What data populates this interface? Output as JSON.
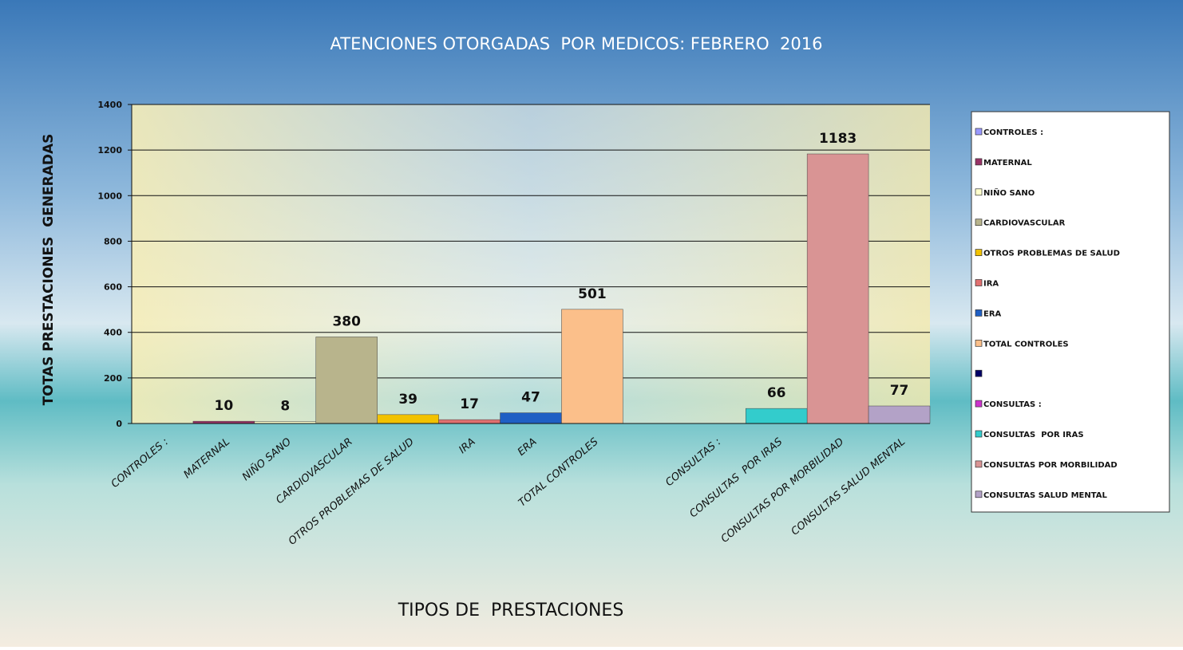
{
  "chart_data": {
    "type": "bar",
    "title": "ATENCIONES OTORGADAS  POR MEDICOS: FEBRERO  2016",
    "x_label": "TIPOS DE  PRESTACIONES",
    "y_label": "TOTAS PRESTACIONES  GENERADAS",
    "categories": [
      "CONTROLES :",
      "MATERNAL",
      "NIÑO SANO",
      "CARDIOVASCULAR",
      "OTROS PROBLEMAS DE SALUD",
      "IRA",
      "ERA",
      "TOTAL CONTROLES",
      null,
      "CONSULTAS :",
      "CONSULTAS  POR IRAS",
      "CONSULTAS POR MORBILIDAD",
      "CONSULTAS SALUD MENTAL"
    ],
    "values": [
      null,
      10,
      8,
      380,
      39,
      17,
      47,
      501,
      null,
      null,
      66,
      1183,
      77
    ],
    "colors": [
      "#9999ff",
      "#993366",
      "#ffffcc",
      "#b8b48c",
      "#f2c200",
      "#e07070",
      "#1f5fc4",
      "#fbbf8a",
      "#000066",
      "#cc33cc",
      "#33cccc",
      "#d99494",
      "#b3a2c7"
    ],
    "ylim": [
      0,
      1400
    ],
    "yticks": [
      0,
      200,
      400,
      600,
      800,
      1000,
      1200,
      1400
    ],
    "grid": true,
    "legend": "right"
  }
}
